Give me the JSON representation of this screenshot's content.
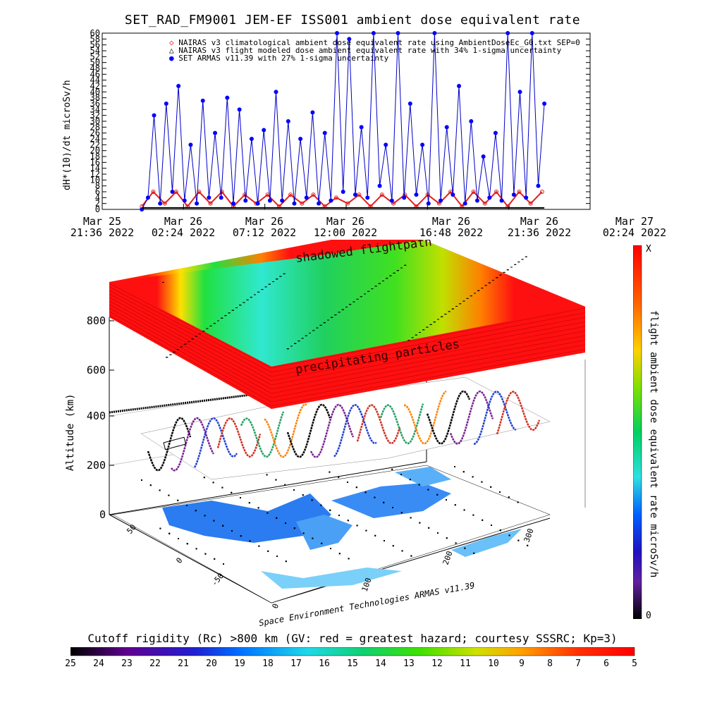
{
  "title": "SET_RAD_FM9001  JEM-EF ISS001 ambient dose equivalent rate",
  "chart_data": [
    {
      "type": "line",
      "title": "SET_RAD_FM9001  JEM-EF ISS001 ambient dose equivalent rate",
      "ylabel": "dH*(10)/dt microSv/h",
      "ylim": [
        0,
        60
      ],
      "yticks": [
        "0",
        "2",
        "4",
        "6",
        "8",
        "10",
        "12",
        "14",
        "16",
        "18",
        "20",
        "22",
        "24",
        "26",
        "28",
        "30",
        "32",
        "34",
        "36",
        "38",
        "40",
        "42",
        "44",
        "46",
        "48",
        "50",
        "52",
        "54",
        "56",
        "58",
        "60"
      ],
      "xticks": [
        {
          "date": "Mar 25",
          "time": "21:36 2022"
        },
        {
          "date": "Mar 26",
          "time": "02:24 2022"
        },
        {
          "date": "Mar 26",
          "time": "07:12 2022"
        },
        {
          "date": "Mar 26",
          "time": "12:00 2022"
        },
        {
          "date": "Mar 26",
          "time": "16:48 2022"
        },
        {
          "date": "Mar 26",
          "time": "21:36 2022"
        },
        {
          "date": "Mar 27",
          "time": "02:24 2022"
        }
      ],
      "legend": [
        {
          "symbol": "◇",
          "color": "#e02020",
          "label": "NAIRAS v3 climatological ambient dose equivalent rate using AmbientDoseEc_G0.txt SEP=0"
        },
        {
          "symbol": "△",
          "color": "#000000",
          "label": "NAIRAS v3 flight modeled dose ambient equivalent rate with 34% 1-sigma uncertainty"
        },
        {
          "symbol": "●",
          "color": "#0000ff",
          "label": "SET ARMAS v11.39 with 27% 1-sigma uncertainty"
        }
      ],
      "series": [
        {
          "name": "NAIRAS v3 climatological ambient dose equivalent rate using AmbientDoseEc_G0.txt SEP=0",
          "color": "#e02020",
          "x_hours": [
            0.0,
            0.75,
            1.5,
            2.25,
            3.0,
            3.75,
            4.5,
            5.25,
            6.0,
            6.75,
            7.5,
            8.25,
            9.0,
            9.75,
            10.5,
            11.25,
            12.0,
            12.75,
            13.5,
            14.25,
            15.0,
            15.75,
            16.5,
            17.25,
            18.0,
            18.75,
            19.5,
            20.25,
            21.0,
            21.75,
            22.5,
            23.25,
            24.0,
            24.75,
            25.5,
            26.25
          ],
          "values": [
            1,
            6,
            2,
            6,
            1,
            6,
            2,
            6,
            1,
            5,
            2,
            5,
            1,
            5,
            2,
            5,
            1,
            4,
            2,
            5,
            1,
            5,
            2,
            5,
            1,
            5,
            2,
            6,
            1,
            6,
            2,
            6,
            1,
            6,
            2,
            6
          ]
        },
        {
          "name": "SET ARMAS v11.39 with 27% 1-sigma uncertainty",
          "color": "#0000ff",
          "x_hours": [
            0.0,
            0.4,
            0.8,
            1.2,
            1.6,
            2.0,
            2.4,
            2.8,
            3.2,
            3.6,
            4.0,
            4.4,
            4.8,
            5.2,
            5.6,
            6.0,
            6.4,
            6.8,
            7.2,
            7.6,
            8.0,
            8.4,
            8.8,
            9.2,
            9.6,
            10.0,
            10.4,
            10.8,
            11.2,
            11.6,
            12.0,
            12.4,
            12.8,
            13.2,
            13.6,
            14.0,
            14.4,
            14.8,
            15.2,
            15.6,
            16.0,
            16.4,
            16.8,
            17.2,
            17.6,
            18.0,
            18.4,
            18.8,
            19.2,
            19.6,
            20.0,
            20.4,
            20.8,
            21.2,
            21.6,
            22.0,
            22.4,
            22.8,
            23.2,
            23.6,
            24.0,
            24.4,
            24.8,
            25.2,
            25.6,
            26.0,
            26.4
          ],
          "values": [
            0,
            4,
            32,
            2,
            36,
            6,
            42,
            3,
            22,
            2,
            37,
            4,
            26,
            4,
            38,
            2,
            34,
            3,
            24,
            2,
            27,
            3,
            40,
            3,
            30,
            2,
            24,
            4,
            33,
            2,
            26,
            3,
            60,
            6,
            58,
            5,
            28,
            4,
            60,
            8,
            22,
            3,
            60,
            4,
            36,
            5,
            22,
            2,
            60,
            3,
            28,
            5,
            42,
            2,
            30,
            3,
            18,
            4,
            26,
            3,
            60,
            5,
            40,
            4,
            60,
            8,
            36
          ]
        }
      ]
    },
    {
      "type": "heatmap",
      "title": "Cutoff rigidity (Rc) >800 km (GV: red = greatest hazard; courtesy SSSRC; Kp=3)",
      "zlabel": "Altitude (km)",
      "zticks": [
        "0",
        "200",
        "400",
        "600",
        "800"
      ],
      "lat_ticks": [
        "-50",
        "0",
        "50"
      ],
      "lon_ticks": [
        "0",
        "100",
        "200",
        "300"
      ],
      "annotations": [
        "shadowed flightpath",
        "precipitating particles",
        "Space Environment Technologies ARMAS v11.39"
      ],
      "bottom_colorbar": {
        "label": "Cutoff rigidity (Rc) >800 km (GV: red = greatest hazard; courtesy SSSRC; Kp=3)",
        "ticks": [
          "25",
          "24",
          "23",
          "22",
          "21",
          "20",
          "19",
          "18",
          "17",
          "16",
          "15",
          "14",
          "13",
          "12",
          "11",
          "10",
          "9",
          "8",
          "7",
          "6",
          "5"
        ]
      },
      "right_colorbar": {
        "label": "flight ambient dose equivalent rate microSv/h",
        "top": "X",
        "bottom": "0"
      }
    }
  ]
}
